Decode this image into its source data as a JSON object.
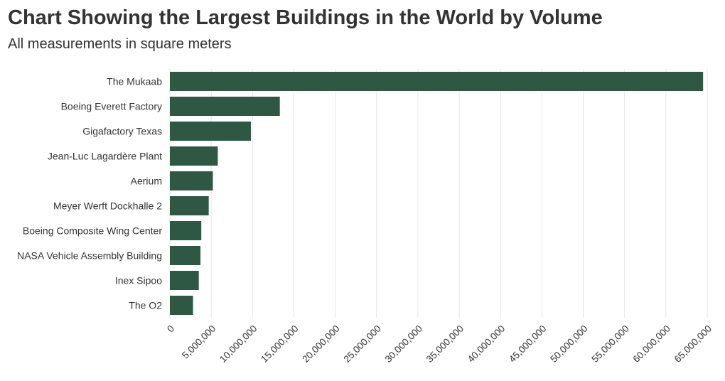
{
  "chart_data": {
    "type": "bar",
    "orientation": "horizontal",
    "title": "Chart Showing the Largest Buildings in the World by Volume",
    "subtitle": "All measurements in square meters",
    "categories": [
      "The Mukaab",
      "Boeing Everett Factory",
      "Gigafactory Texas",
      "Jean-Luc Lagardère Plant",
      "Aerium",
      "Meyer Werft Dockhalle 2",
      "Boeing Composite Wing Center",
      "NASA Vehicle Assembly Building",
      "Inex Sipoo",
      "The O2"
    ],
    "values": [
      64500000,
      13300000,
      9800000,
      5800000,
      5200000,
      4700000,
      3800000,
      3700000,
      3500000,
      2800000
    ],
    "xlim": [
      0,
      65000000
    ],
    "x_ticks": [
      0,
      5000000,
      10000000,
      15000000,
      20000000,
      25000000,
      30000000,
      35000000,
      40000000,
      45000000,
      50000000,
      55000000,
      60000000,
      65000000
    ],
    "x_tick_labels": [
      "0",
      "5,000,000",
      "10,000,000",
      "15,000,000",
      "20,000,000",
      "25,000,000",
      "30,000,000",
      "35,000,000",
      "40,000,000",
      "45,000,000",
      "50,000,000",
      "55,000,000",
      "60,000,000",
      "65,000,000"
    ],
    "xlabel": "",
    "ylabel": "",
    "grid": "vertical",
    "legend": "none",
    "bar_color": "#2e5744",
    "grid_color": "#e6e6e6"
  }
}
